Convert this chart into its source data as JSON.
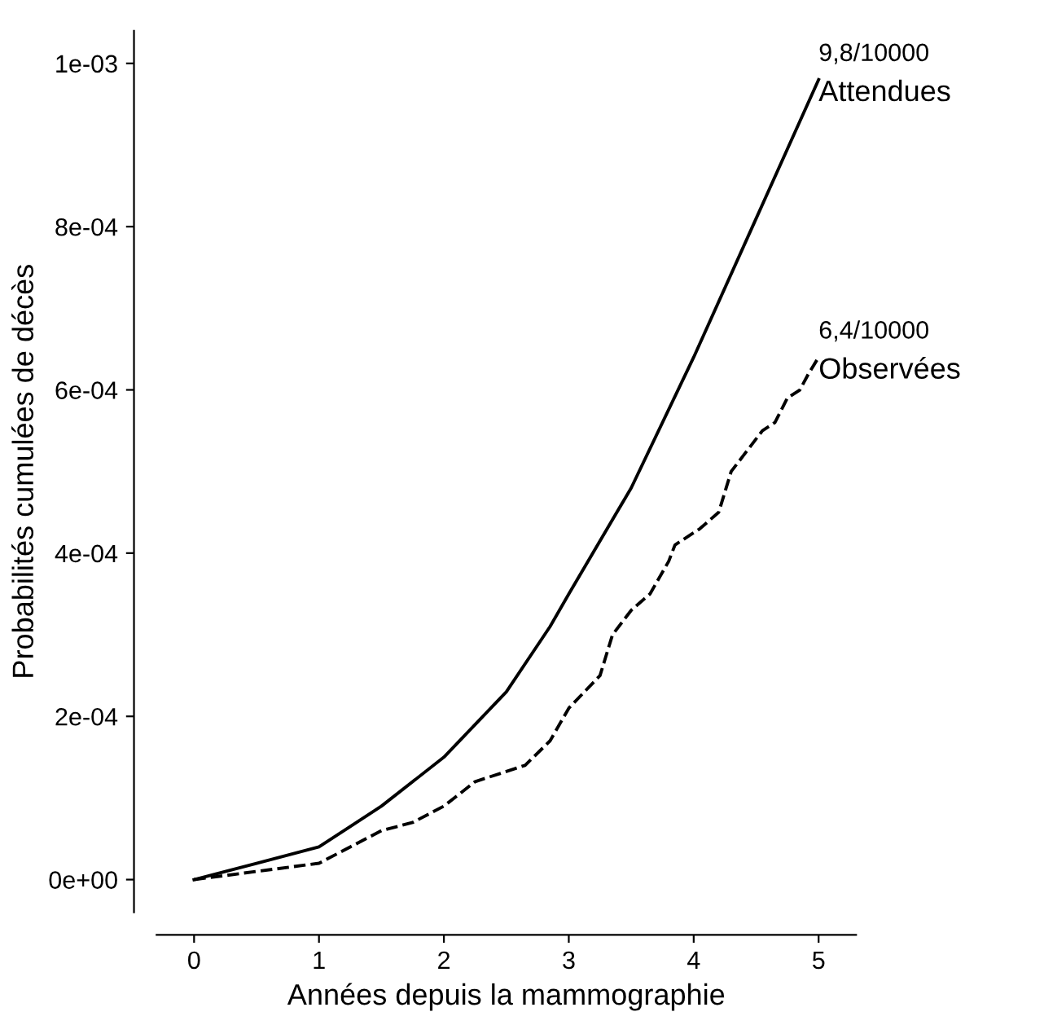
{
  "chart_data": {
    "type": "line",
    "xlabel": "Années depuis la mammographie",
    "ylabel": "Probabilités cumulées de décès",
    "xlim": [
      -0.3,
      5.3
    ],
    "ylim": [
      -4e-05,
      0.00104
    ],
    "xticks": [
      0,
      1,
      2,
      3,
      4,
      5
    ],
    "yticks": [
      {
        "value": 0,
        "label": "0e+00"
      },
      {
        "value": 0.0002,
        "label": "2e-04"
      },
      {
        "value": 0.0004,
        "label": "4e-04"
      },
      {
        "value": 0.0006,
        "label": "6e-04"
      },
      {
        "value": 0.0008,
        "label": "8e-04"
      },
      {
        "value": 0.001,
        "label": "1e-03"
      }
    ],
    "grid": false,
    "legend": false,
    "marker": "none",
    "series": [
      {
        "name": "Attendues",
        "color": "#000000",
        "line_style": "solid",
        "x": [
          0,
          0.5,
          1,
          1.5,
          2,
          2.5,
          2.85,
          3,
          3.5,
          4,
          4.5,
          5
        ],
        "values": [
          0,
          2e-05,
          4e-05,
          9e-05,
          0.00015,
          0.00023,
          0.00031,
          0.00035,
          0.00048,
          0.00064,
          0.00081,
          0.00098
        ]
      },
      {
        "name": "Observées",
        "color": "#000000",
        "line_style": "dashed",
        "x": [
          0,
          0.5,
          1,
          1.25,
          1.5,
          1.75,
          2,
          2.25,
          2.45,
          2.65,
          2.85,
          3,
          3.25,
          3.35,
          3.5,
          3.65,
          3.8,
          3.85,
          4.05,
          4.2,
          4.3,
          4.4,
          4.55,
          4.65,
          4.75,
          4.85,
          4.92,
          5
        ],
        "values": [
          0,
          1e-05,
          2e-05,
          4e-05,
          6e-05,
          7e-05,
          9e-05,
          0.00012,
          0.00013,
          0.00014,
          0.00017,
          0.00021,
          0.00025,
          0.0003,
          0.00033,
          0.00035,
          0.00039,
          0.00041,
          0.00043,
          0.00045,
          0.0005,
          0.00052,
          0.00055,
          0.00056,
          0.00059,
          0.0006,
          0.00062,
          0.00064
        ]
      }
    ],
    "annotations": [
      {
        "text": "9,8/10000",
        "x": 5,
        "y": 0.00098
      },
      {
        "text": "6,4/10000",
        "x": 5,
        "y": 0.00064
      }
    ]
  }
}
